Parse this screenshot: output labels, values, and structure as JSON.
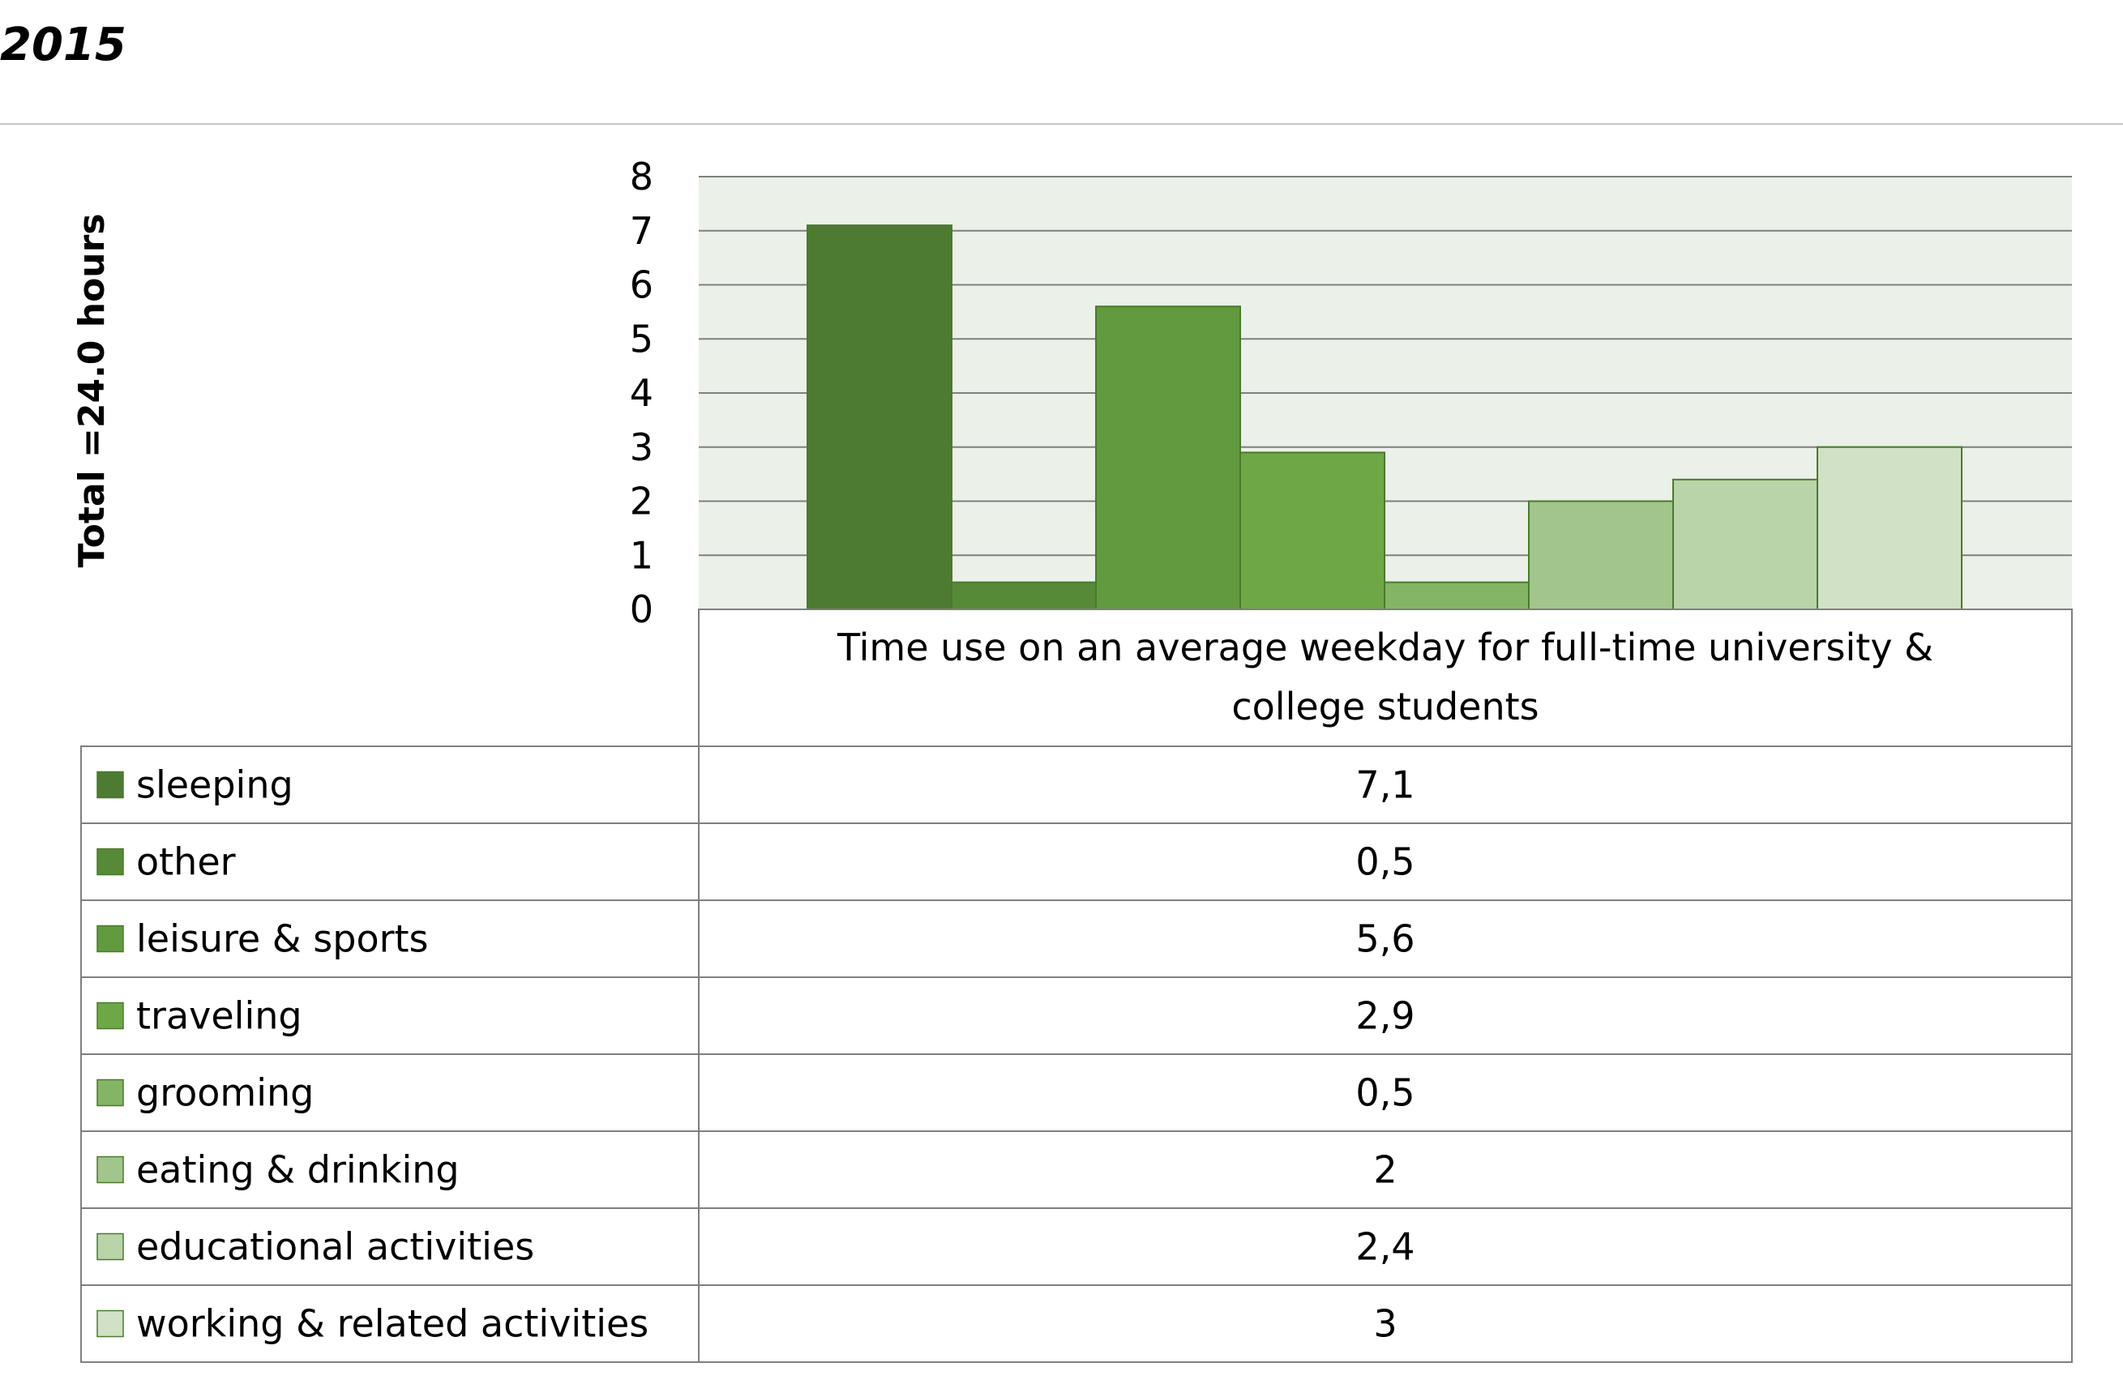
{
  "header": {
    "title": "2015"
  },
  "chart_data": {
    "type": "bar",
    "title": "",
    "xlabel": "",
    "ylabel": "Total =24.0 hours",
    "ylim": [
      0,
      8
    ],
    "y_ticks": [
      "0",
      "1",
      "2",
      "3",
      "4",
      "5",
      "6",
      "7",
      "8"
    ],
    "grid": true,
    "legend": "data-table",
    "categories": [
      "Time use on an average weekday for full-time university & college students"
    ],
    "category_lines": [
      "Time use on an average weekday for full-time university &",
      "college students"
    ],
    "series": [
      {
        "name": "sleeping",
        "values": [
          7.1
        ],
        "label": "7,1",
        "color": "#4e7b32"
      },
      {
        "name": "other",
        "values": [
          0.5
        ],
        "label": "0,5",
        "color": "#578a37"
      },
      {
        "name": "leisure & sports",
        "values": [
          5.6
        ],
        "label": "5,6",
        "color": "#629b3f"
      },
      {
        "name": "traveling",
        "values": [
          2.9
        ],
        "label": "2,9",
        "color": "#6ea846"
      },
      {
        "name": "grooming",
        "values": [
          0.5
        ],
        "label": "0,5",
        "color": "#84b565"
      },
      {
        "name": "eating & drinking",
        "values": [
          2
        ],
        "label": "2",
        "color": "#a2c58c"
      },
      {
        "name": "educational activities",
        "values": [
          2.4
        ],
        "label": "2,4",
        "color": "#b9d4a8"
      },
      {
        "name": "working & related activities",
        "values": [
          3
        ],
        "label": "3",
        "color": "#d1e1c6"
      }
    ],
    "colors": {
      "plot_background": "#ebf0e9",
      "gridline": "#7f7f7f",
      "bar_border": "#4a7a2c",
      "table_border": "#7f7f7f"
    }
  }
}
